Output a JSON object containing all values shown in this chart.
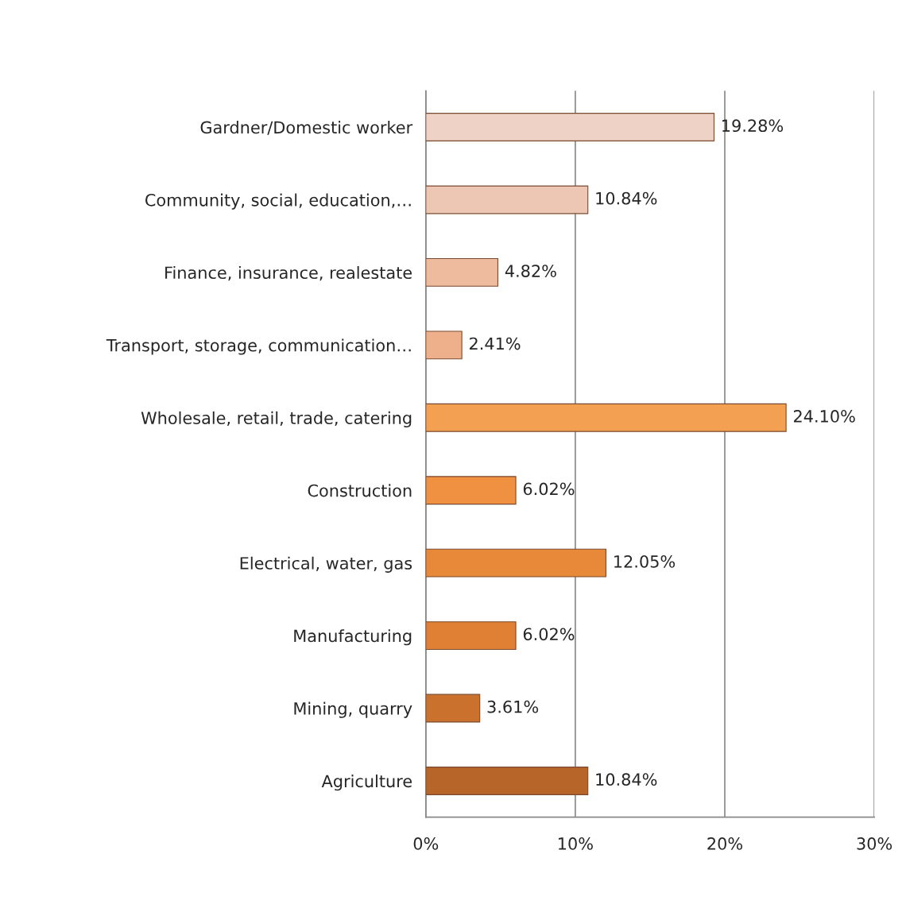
{
  "chart_data": {
    "type": "bar",
    "orientation": "horizontal",
    "categories": [
      "Gardner/Domestic worker",
      "Community, social, education,…",
      "Finance, insurance, realestate",
      "Transport, storage, communication…",
      "Wholesale, retail, trade, catering",
      "Construction",
      "Electrical, water, gas",
      "Manufacturing",
      "Mining, quarry",
      "Agriculture"
    ],
    "values": [
      19.28,
      10.84,
      4.82,
      2.41,
      24.1,
      6.02,
      12.05,
      6.02,
      3.61,
      10.84
    ],
    "value_labels": [
      "19.28%",
      "10.84%",
      "4.82%",
      "2.41%",
      "24.10%",
      "6.02%",
      "12.05%",
      "6.02%",
      "3.61%",
      "10.84%"
    ],
    "colors": [
      "#efd2c6",
      "#edc6b4",
      "#eebb9e",
      "#eeb08a",
      "#f4a052",
      "#ef9141",
      "#e88939",
      "#df8035",
      "#c9712d",
      "#b86529"
    ],
    "xlim": [
      0,
      30
    ],
    "xticks": [
      {
        "value": 0,
        "label": "0%"
      },
      {
        "value": 10,
        "label": "10%"
      },
      {
        "value": 20,
        "label": "20%"
      },
      {
        "value": 30,
        "label": "30%"
      }
    ],
    "grid": "x"
  }
}
